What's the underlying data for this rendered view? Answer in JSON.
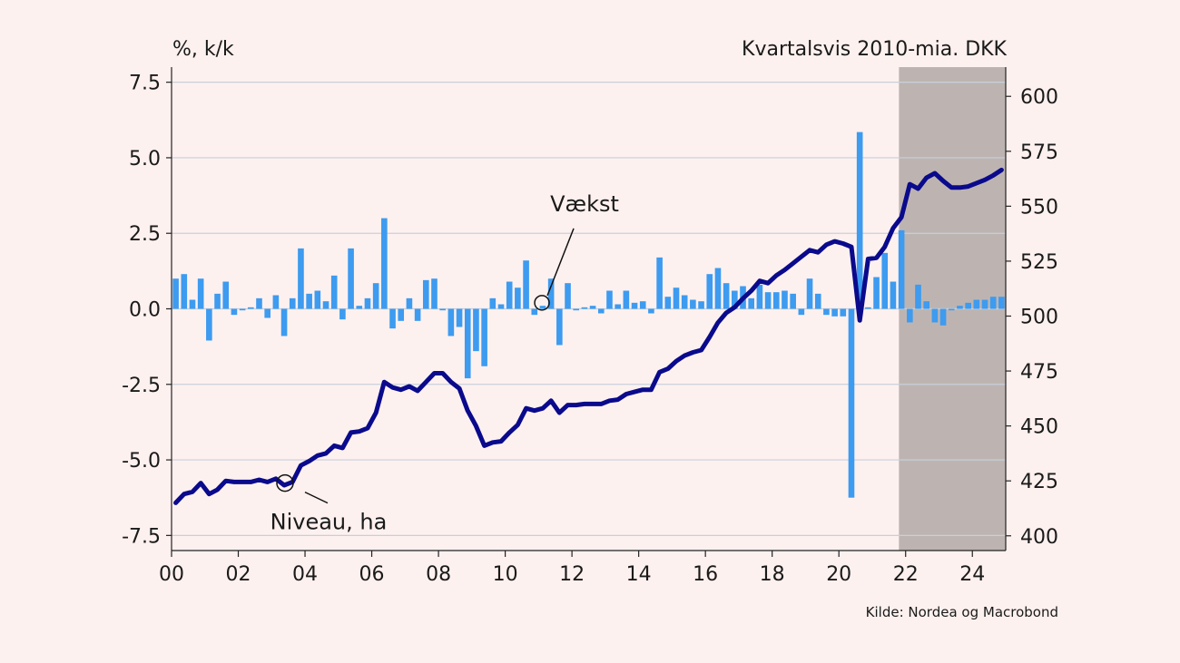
{
  "left_axis_unit": "%, k/k",
  "right_axis_unit": "Kvartalsvis 2010-mia. DKK",
  "source": "Kilde: Nordea og Macrobond",
  "colors": {
    "background": "#fdf1ef",
    "bars": "#3d9bf0",
    "line": "#0a0a8c",
    "forecast_shade": "#bdb4b1",
    "grid": "#c8d0dc"
  },
  "chart_data": {
    "type": "bar+line",
    "x_range": [
      2000.0,
      2025.0
    ],
    "x_tick_labels": [
      "00",
      "02",
      "04",
      "06",
      "08",
      "10",
      "12",
      "14",
      "16",
      "18",
      "20",
      "22",
      "24"
    ],
    "x_tick_values": [
      2000,
      2002,
      2004,
      2006,
      2008,
      2010,
      2012,
      2014,
      2016,
      2018,
      2020,
      2022,
      2024
    ],
    "left_axis": {
      "range": [
        -8.0,
        8.0
      ],
      "ticks": [
        7.5,
        5.0,
        2.5,
        0.0,
        -2.5,
        -5.0,
        -7.5
      ],
      "tick_labels": [
        "7.5",
        "5.0",
        "2.5",
        "0.0",
        "-2.5",
        "-5.0",
        "-7.5"
      ]
    },
    "right_axis": {
      "range": [
        393.3,
        613.3
      ],
      "ticks": [
        600,
        575,
        550,
        525,
        500,
        475,
        450,
        425,
        400
      ],
      "tick_labels": [
        "600",
        "575",
        "550",
        "525",
        "500",
        "475",
        "450",
        "425",
        "400"
      ]
    },
    "forecast_shade_from": 2021.8,
    "grid": true,
    "annotations": [
      {
        "text": "Vækst",
        "series": "growth",
        "x": 2011.1
      },
      {
        "text": "Niveau, ha",
        "series": "level",
        "x": 2003.4
      }
    ],
    "growth": {
      "x": [
        2000.125,
        2000.375,
        2000.625,
        2000.875,
        2001.125,
        2001.375,
        2001.625,
        2001.875,
        2002.125,
        2002.375,
        2002.625,
        2002.875,
        2003.125,
        2003.375,
        2003.625,
        2003.875,
        2004.125,
        2004.375,
        2004.625,
        2004.875,
        2005.125,
        2005.375,
        2005.625,
        2005.875,
        2006.125,
        2006.375,
        2006.625,
        2006.875,
        2007.125,
        2007.375,
        2007.625,
        2007.875,
        2008.125,
        2008.375,
        2008.625,
        2008.875,
        2009.125,
        2009.375,
        2009.625,
        2009.875,
        2010.125,
        2010.375,
        2010.625,
        2010.875,
        2011.125,
        2011.375,
        2011.625,
        2011.875,
        2012.125,
        2012.375,
        2012.625,
        2012.875,
        2013.125,
        2013.375,
        2013.625,
        2013.875,
        2014.125,
        2014.375,
        2014.625,
        2014.875,
        2015.125,
        2015.375,
        2015.625,
        2015.875,
        2016.125,
        2016.375,
        2016.625,
        2016.875,
        2017.125,
        2017.375,
        2017.625,
        2017.875,
        2018.125,
        2018.375,
        2018.625,
        2018.875,
        2019.125,
        2019.375,
        2019.625,
        2019.875,
        2020.125,
        2020.375,
        2020.625,
        2020.875,
        2021.125,
        2021.375,
        2021.625,
        2021.875,
        2022.125,
        2022.375,
        2022.625,
        2022.875,
        2023.125,
        2023.375,
        2023.625,
        2023.875,
        2024.125,
        2024.375,
        2024.625,
        2024.875
      ],
      "values": [
        1.0,
        1.15,
        0.3,
        1.0,
        -1.05,
        0.5,
        0.9,
        -0.2,
        -0.05,
        0.05,
        0.35,
        -0.3,
        0.45,
        -0.9,
        0.35,
        2.0,
        0.5,
        0.6,
        0.25,
        1.1,
        -0.35,
        2.0,
        0.1,
        0.35,
        0.85,
        3.0,
        -0.65,
        -0.4,
        0.35,
        -0.4,
        0.95,
        1.0,
        -0.05,
        -0.9,
        -0.6,
        -2.3,
        -1.4,
        -1.9,
        0.35,
        0.15,
        0.9,
        0.7,
        1.6,
        -0.2,
        0.1,
        1.0,
        -1.2,
        0.85,
        -0.05,
        0.05,
        0.1,
        -0.15,
        0.6,
        0.15,
        0.6,
        0.2,
        0.25,
        -0.15,
        1.7,
        0.4,
        0.7,
        0.45,
        0.3,
        0.25,
        1.15,
        1.35,
        0.85,
        0.6,
        0.75,
        0.35,
        0.8,
        0.55,
        0.55,
        0.6,
        0.5,
        -0.2,
        1.0,
        0.5,
        -0.2,
        -0.25,
        -0.25,
        -6.25,
        5.85,
        0.05,
        1.05,
        1.85,
        0.9,
        2.6,
        -0.45,
        0.8,
        0.25,
        -0.45,
        -0.55,
        -0.05,
        0.1,
        0.2,
        0.3,
        0.3,
        0.4,
        0.4
      ]
    },
    "level": {
      "x": [
        2000.125,
        2000.375,
        2000.625,
        2000.875,
        2001.125,
        2001.375,
        2001.625,
        2001.875,
        2002.125,
        2002.375,
        2002.625,
        2002.875,
        2003.125,
        2003.375,
        2003.625,
        2003.875,
        2004.125,
        2004.375,
        2004.625,
        2004.875,
        2005.125,
        2005.375,
        2005.625,
        2005.875,
        2006.125,
        2006.375,
        2006.625,
        2006.875,
        2007.125,
        2007.375,
        2007.625,
        2007.875,
        2008.125,
        2008.375,
        2008.625,
        2008.875,
        2009.125,
        2009.375,
        2009.625,
        2009.875,
        2010.125,
        2010.375,
        2010.625,
        2010.875,
        2011.125,
        2011.375,
        2011.625,
        2011.875,
        2012.125,
        2012.375,
        2012.625,
        2012.875,
        2013.125,
        2013.375,
        2013.625,
        2013.875,
        2014.125,
        2014.375,
        2014.625,
        2014.875,
        2015.125,
        2015.375,
        2015.625,
        2015.875,
        2016.125,
        2016.375,
        2016.625,
        2016.875,
        2017.125,
        2017.375,
        2017.625,
        2017.875,
        2018.125,
        2018.375,
        2018.625,
        2018.875,
        2019.125,
        2019.375,
        2019.625,
        2019.875,
        2020.125,
        2020.375,
        2020.625,
        2020.875,
        2021.125,
        2021.375,
        2021.625,
        2021.875,
        2022.125,
        2022.375,
        2022.625,
        2022.875,
        2023.125,
        2023.375,
        2023.625,
        2023.875,
        2024.125,
        2024.375,
        2024.625,
        2024.875
      ],
      "values": [
        415,
        419,
        420,
        424,
        419,
        421,
        425,
        424.5,
        424.5,
        424.5,
        425.5,
        424.5,
        426,
        423,
        424.5,
        432,
        434,
        436.5,
        437.5,
        441,
        440,
        447,
        447.5,
        449,
        456,
        470,
        467.5,
        466.5,
        468,
        466,
        470,
        474,
        474,
        470,
        467,
        457,
        450,
        441,
        442.5,
        443,
        447,
        450.5,
        458,
        457,
        458,
        461.5,
        456,
        459.5,
        459.5,
        460,
        460,
        460,
        461.5,
        462,
        464.5,
        465.5,
        466.5,
        466.5,
        474.5,
        476,
        479.5,
        482,
        483.5,
        484.5,
        490.5,
        497,
        501.5,
        504,
        508,
        511.5,
        516,
        515,
        518.5,
        521,
        524,
        527,
        530,
        529,
        532.5,
        534,
        533,
        531.5,
        498,
        526,
        526.5,
        531.5,
        540,
        545,
        560,
        558,
        563,
        565,
        561.5,
        558.5,
        558.5,
        559,
        560.5,
        562,
        564,
        566.5
      ]
    }
  }
}
